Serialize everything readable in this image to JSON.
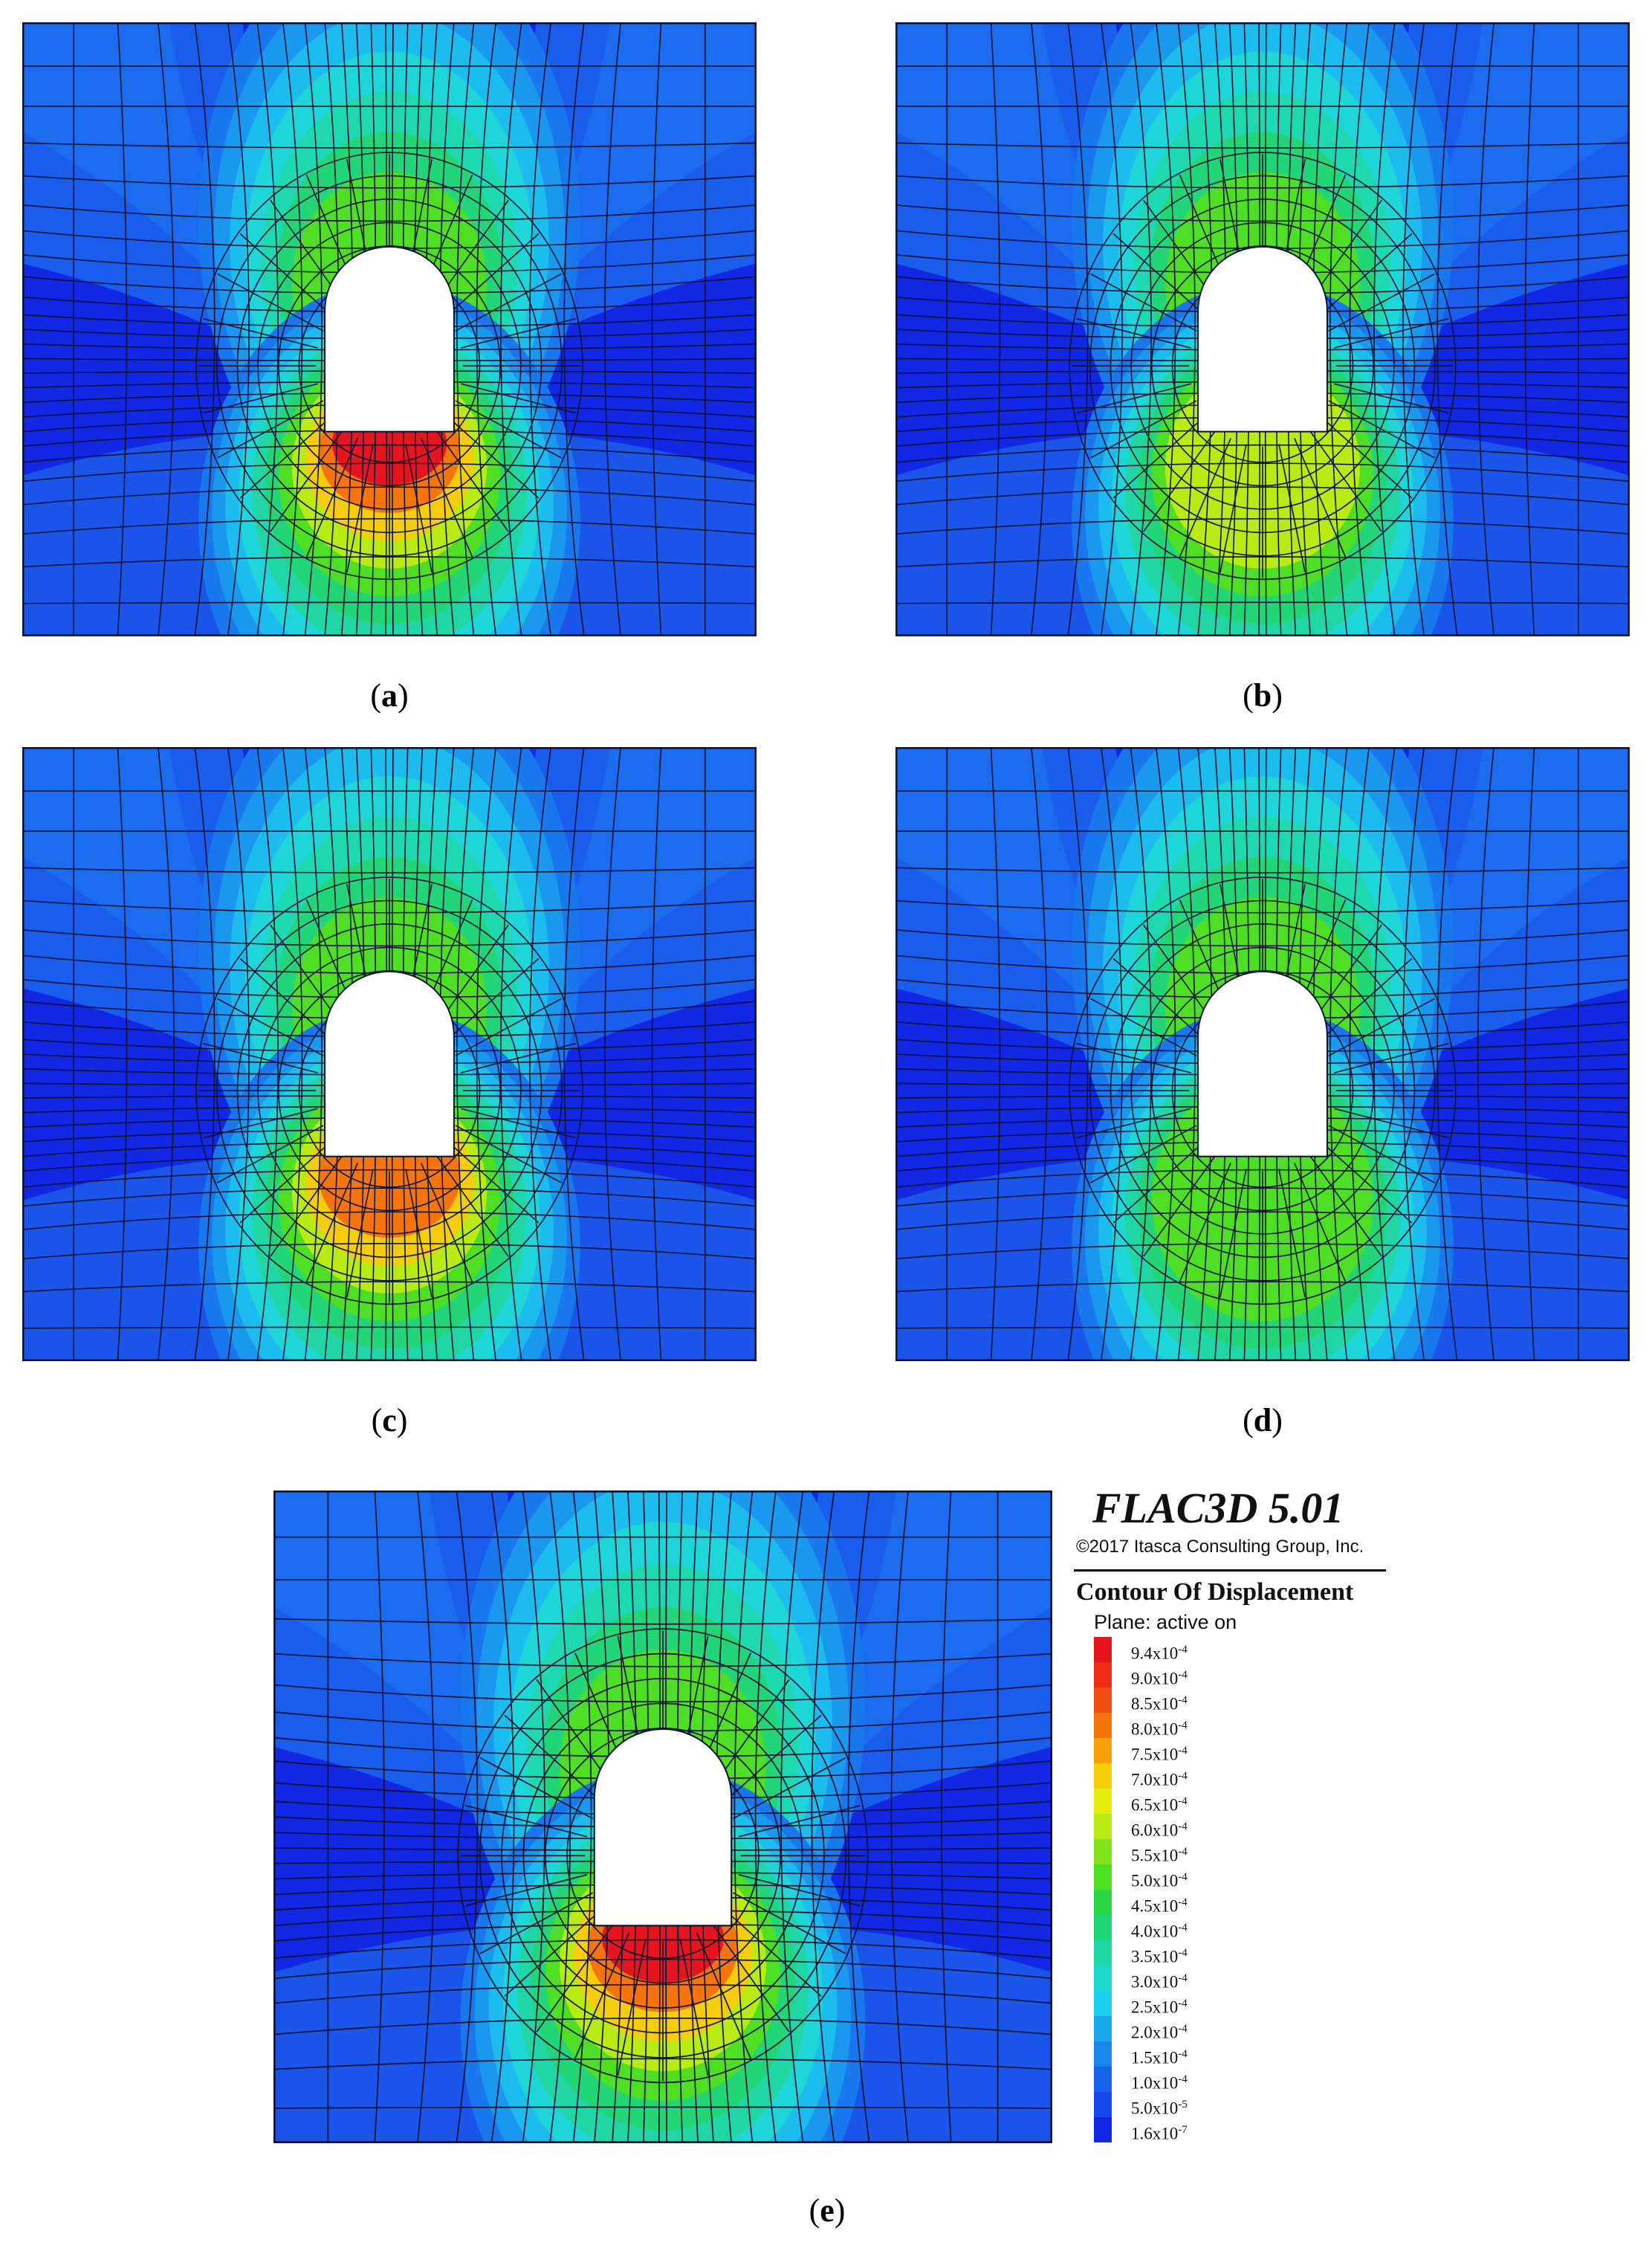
{
  "panels": [
    {
      "id": "a",
      "label": "a",
      "floor_intensity": 1.0,
      "crown_intensity": 0.72
    },
    {
      "id": "b",
      "label": "b",
      "floor_intensity": 0.74,
      "crown_intensity": 0.7
    },
    {
      "id": "c",
      "label": "c",
      "floor_intensity": 0.95,
      "crown_intensity": 0.74
    },
    {
      "id": "d",
      "label": "d",
      "floor_intensity": 0.68,
      "crown_intensity": 0.7
    },
    {
      "id": "e",
      "label": "e",
      "floor_intensity": 1.0,
      "crown_intensity": 0.78
    }
  ],
  "legend": {
    "software": "FLAC3D 5.01",
    "copyright": "©2017 Itasca Consulting Group, Inc.",
    "title": "Contour Of Displacement",
    "plane": "Plane: active on",
    "levels": [
      {
        "label": "9.4x10",
        "exp": "-4",
        "color": "#e6141e"
      },
      {
        "label": "9.0x10",
        "exp": "-4",
        "color": "#ee2b14"
      },
      {
        "label": "8.5x10",
        "exp": "-4",
        "color": "#f24d10"
      },
      {
        "label": "8.0x10",
        "exp": "-4",
        "color": "#f5740c"
      },
      {
        "label": "7.5x10",
        "exp": "-4",
        "color": "#f7a00a"
      },
      {
        "label": "7.0x10",
        "exp": "-4",
        "color": "#f5cc0a"
      },
      {
        "label": "6.5x10",
        "exp": "-4",
        "color": "#e8ec0c"
      },
      {
        "label": "6.0x10",
        "exp": "-4",
        "color": "#b8ea14"
      },
      {
        "label": "5.5x10",
        "exp": "-4",
        "color": "#84e41c"
      },
      {
        "label": "5.0x10",
        "exp": "-4",
        "color": "#4ede24"
      },
      {
        "label": "4.5x10",
        "exp": "-4",
        "color": "#2ad846"
      },
      {
        "label": "4.0x10",
        "exp": "-4",
        "color": "#22d678"
      },
      {
        "label": "3.5x10",
        "exp": "-4",
        "color": "#20d6a4"
      },
      {
        "label": "3.0x10",
        "exp": "-4",
        "color": "#1ed8cc"
      },
      {
        "label": "2.5x10",
        "exp": "-4",
        "color": "#1ccfec"
      },
      {
        "label": "2.0x10",
        "exp": "-4",
        "color": "#1aa8ec"
      },
      {
        "label": "1.5x10",
        "exp": "-4",
        "color": "#1886ea"
      },
      {
        "label": "1.0x10",
        "exp": "-4",
        "color": "#1665ea"
      },
      {
        "label": "5.0x10",
        "exp": "-5",
        "color": "#1448e8"
      },
      {
        "label": "1.6x10",
        "exp": "-7",
        "color": "#1228e4"
      }
    ]
  }
}
